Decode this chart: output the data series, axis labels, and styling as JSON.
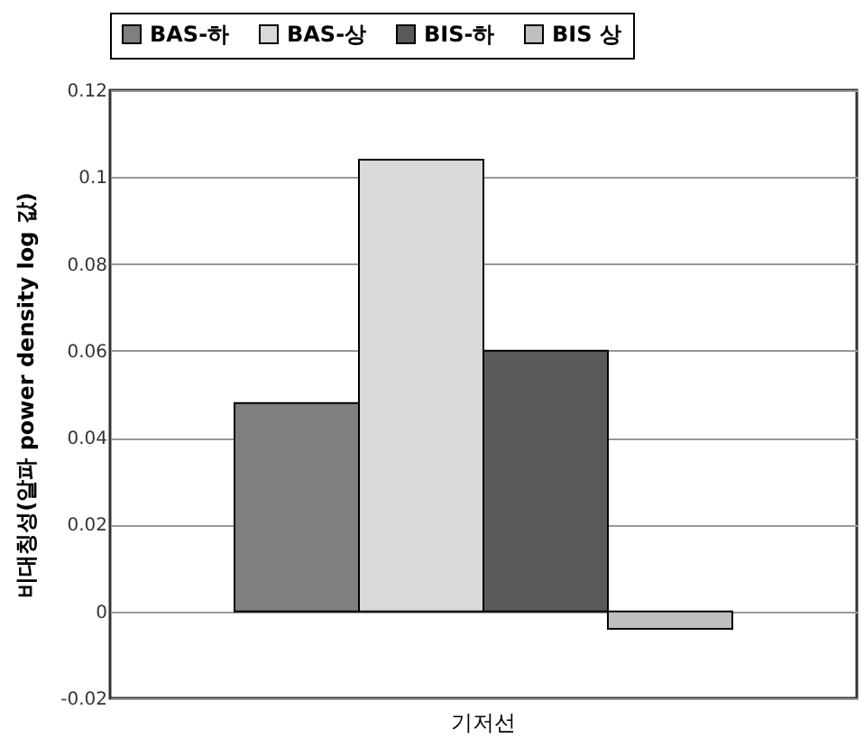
{
  "chart_data": {
    "type": "bar",
    "ylabel": "비대칭성(알파 power density log 값)",
    "categories": [
      "기저선"
    ],
    "series": [
      {
        "name": "BAS-하",
        "color": "#7f7f7f",
        "values": [
          0.048
        ]
      },
      {
        "name": "BAS-상",
        "color": "#d9d9d9",
        "values": [
          0.104
        ]
      },
      {
        "name": "BIS-하",
        "color": "#595959",
        "values": [
          0.06
        ]
      },
      {
        "name": "BIS 상",
        "color": "#bfbfbf",
        "values": [
          -0.004
        ]
      }
    ],
    "ylim": [
      -0.02,
      0.12
    ],
    "yticks": [
      -0.02,
      0,
      0.02,
      0.04,
      0.06,
      0.08,
      0.1,
      0.12
    ],
    "grid": "y",
    "legend": "top"
  }
}
